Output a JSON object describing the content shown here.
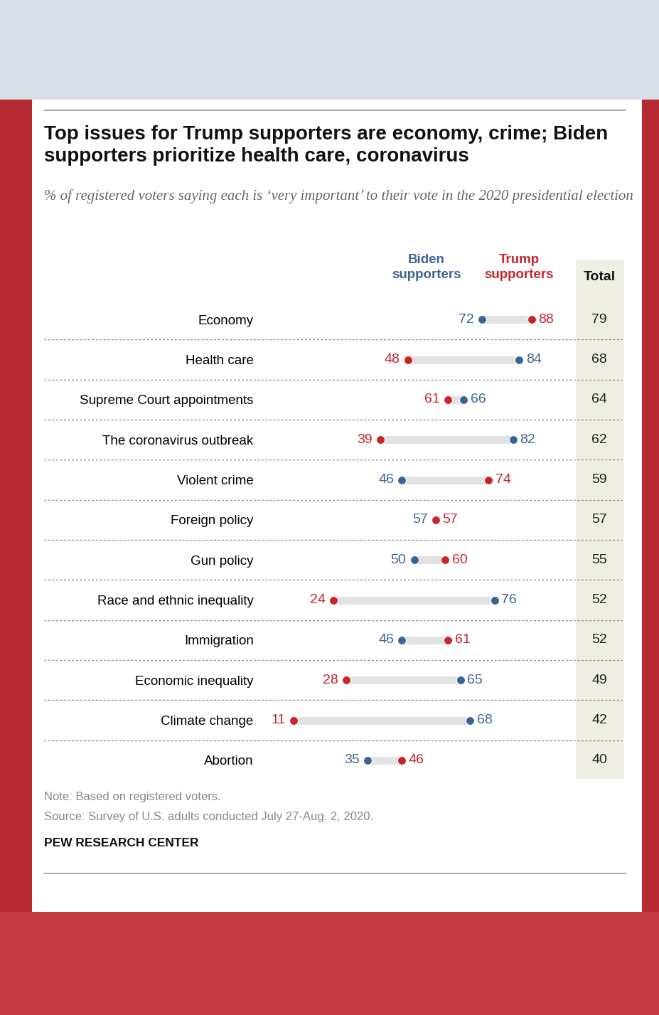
{
  "chart_data": {
    "type": "dot",
    "title": "Top issues for Trump supporters are economy, crime; Biden supporters prioritize health care, coronavirus",
    "subtitle": "% of registered voters saying each is ‘very important’ to their vote in the 2020 presidential election",
    "categories": [
      "Economy",
      "Health care",
      "Supreme Court appointments",
      "The coronavirus outbreak",
      "Violent crime",
      "Foreign policy",
      "Gun policy",
      "Race and ethnic inequality",
      "Immigration",
      "Economic inequality",
      "Climate change",
      "Abortion"
    ],
    "series": [
      {
        "name": "Biden supporters",
        "color": "#3b6496",
        "values": [
          72,
          84,
          66,
          82,
          46,
          57,
          50,
          76,
          46,
          65,
          68,
          35
        ]
      },
      {
        "name": "Trump supporters",
        "color": "#c9242b",
        "values": [
          88,
          48,
          61,
          39,
          74,
          57,
          60,
          24,
          61,
          28,
          11,
          46
        ]
      }
    ],
    "total_label": "Total",
    "totals": [
      79,
      68,
      64,
      62,
      59,
      57,
      55,
      52,
      52,
      49,
      42,
      40
    ],
    "xlim": [
      0,
      100
    ],
    "data_labels": true,
    "tick_labels": "y",
    "note": "Note: Based on registered voters.",
    "source": "Source: Survey of U.S. adults conducted July 27-Aug. 2, 2020.",
    "credit": "PEW RESEARCH CENTER"
  }
}
